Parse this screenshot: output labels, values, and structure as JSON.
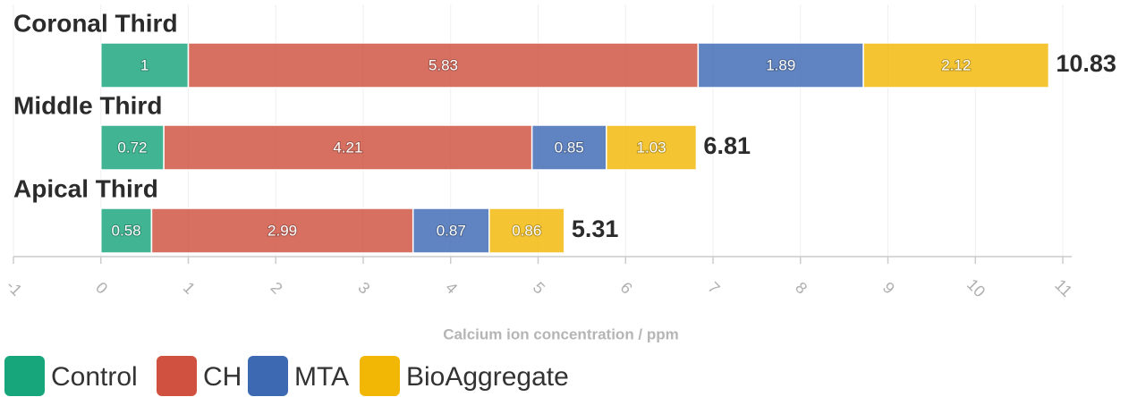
{
  "chart_data": {
    "type": "stacked-bar-horizontal",
    "categories": [
      "Coronal Third",
      "Middle Third",
      "Apical Third"
    ],
    "series": [
      {
        "name": "Control",
        "color": "#17a57b",
        "values": [
          1,
          0.72,
          0.58
        ]
      },
      {
        "name": "CH",
        "color": "#d0513f",
        "values": [
          5.83,
          4.21,
          2.99
        ]
      },
      {
        "name": "MTA",
        "color": "#3d69b3",
        "values": [
          1.89,
          0.85,
          0.87
        ]
      },
      {
        "name": "BioAggregate",
        "color": "#f2b705",
        "values": [
          2.12,
          1.03,
          0.86
        ]
      }
    ],
    "totals": [
      10.83,
      6.81,
      5.31
    ],
    "xlabel": "Calcium ion concentration / ppm",
    "xlim": [
      -1,
      11
    ],
    "xticks": [
      -1,
      0,
      1,
      2,
      3,
      4,
      5,
      6,
      7,
      8,
      9,
      10,
      11
    ],
    "grid": true
  }
}
